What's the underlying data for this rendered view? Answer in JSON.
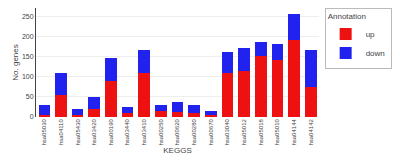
{
  "chart_data": {
    "type": "bar",
    "stacked": true,
    "xlabel": "KEGGS",
    "ylabel": "No. genes",
    "legend_title": "Annotation",
    "categories": [
      "hsa05030",
      "hsa04110",
      "hsa05430",
      "hsa03420",
      "hsa00190",
      "hsa03440",
      "hsa03410",
      "hsa00250",
      "hsa00620",
      "hsa00280",
      "hsa00670",
      "hsa03040",
      "hsa05012",
      "hsa05018",
      "hsa05010",
      "hsa04144",
      "hsa04142"
    ],
    "series": [
      {
        "name": "up",
        "color": "#EE1111",
        "values": [
          5,
          55,
          5,
          20,
          90,
          10,
          110,
          15,
          12,
          10,
          5,
          110,
          115,
          150,
          140,
          190,
          75
        ]
      },
      {
        "name": "down",
        "color": "#2222EE",
        "values": [
          25,
          55,
          15,
          30,
          55,
          15,
          55,
          15,
          25,
          20,
          10,
          50,
          55,
          35,
          40,
          65,
          90
        ]
      }
    ],
    "ylim": [
      0,
      270
    ],
    "yticks": [
      0,
      50,
      100,
      150,
      200,
      250
    ],
    "grid": true,
    "legend": "right"
  }
}
